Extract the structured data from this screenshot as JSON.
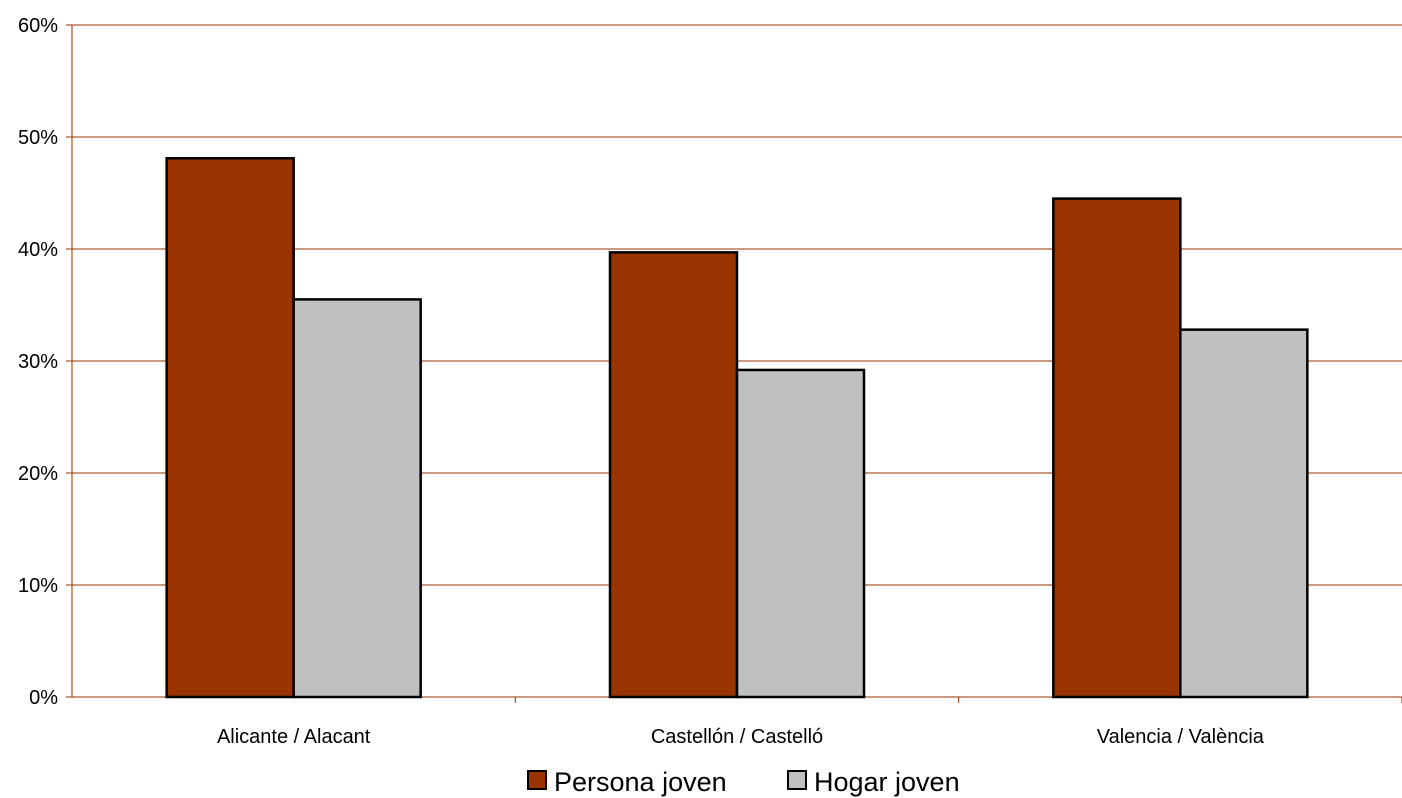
{
  "chart_data": {
    "type": "bar",
    "categories": [
      "Alicante / Alacant",
      "Castellón / Castelló",
      "Valencia / València"
    ],
    "series": [
      {
        "name": "Persona joven",
        "values": [
          48.1,
          39.7,
          44.5
        ],
        "color": "#993300"
      },
      {
        "name": "Hogar joven",
        "values": [
          35.5,
          29.2,
          32.8
        ],
        "color": "#C0C0C0"
      }
    ],
    "title": "",
    "xlabel": "",
    "ylabel": "",
    "ylim": [
      0,
      60
    ],
    "y_ticks": [
      0,
      10,
      20,
      30,
      40,
      50,
      60
    ],
    "y_tick_labels": [
      "0%",
      "10%",
      "20%",
      "30%",
      "40%",
      "50%",
      "60%"
    ],
    "grid": true,
    "grid_color": "#993300",
    "bar_outline_color": "#000000",
    "legend_position": "bottom"
  }
}
